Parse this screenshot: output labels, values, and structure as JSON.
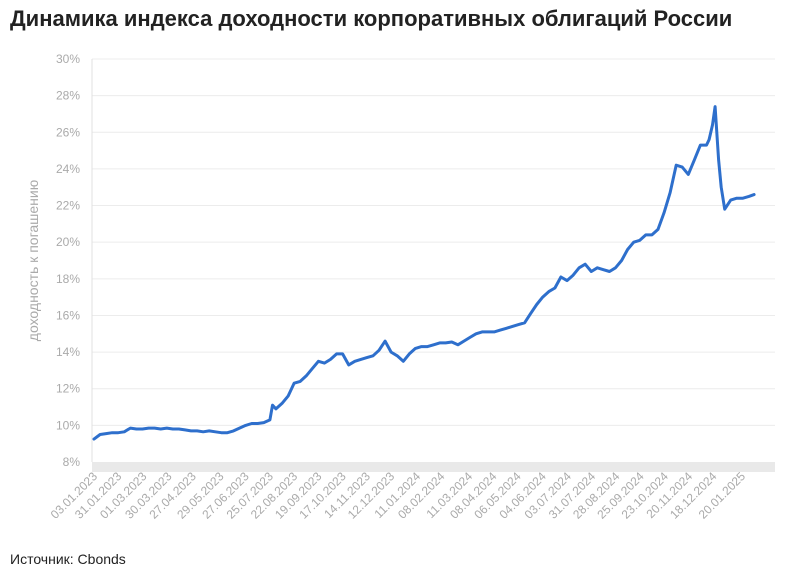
{
  "title": "Динамика индекса доходности корпоративных облигаций России",
  "source": "Источник: Cbonds",
  "chart_data": {
    "type": "line",
    "title": "Динамика индекса доходности корпоративных облигаций России",
    "ylabel": "доходность к погашению",
    "xlabel": "",
    "ylim": [
      8,
      30
    ],
    "y_ticks": [
      "8%",
      "10%",
      "12%",
      "14%",
      "16%",
      "18%",
      "20%",
      "22%",
      "24%",
      "26%",
      "28%",
      "30%"
    ],
    "x_ticks": [
      "03.01.2023",
      "31.01.2023",
      "01.03.2023",
      "30.03.2023",
      "27.04.2023",
      "29.05.2023",
      "27.06.2023",
      "25.07.2023",
      "22.08.2023",
      "19.09.2023",
      "17.10.2023",
      "14.11.2023",
      "12.12.2023",
      "11.01.2024",
      "08.02.2024",
      "11.03.2024",
      "08.04.2024",
      "06.05.2024",
      "04.06.2024",
      "03.07.2024",
      "31.07.2024",
      "28.08.2024",
      "25.09.2024",
      "23.10.2024",
      "20.11.2024",
      "18.12.2024",
      "20.01.2025"
    ],
    "color": "#2e6fcc",
    "grid": "horizontal",
    "series": [
      {
        "x": [
          "2023-01-03",
          "2023-01-10",
          "2023-01-17",
          "2023-01-24",
          "2023-01-31",
          "2023-02-07",
          "2023-02-14",
          "2023-02-21",
          "2023-02-28",
          "2023-03-07",
          "2023-03-14",
          "2023-03-21",
          "2023-03-28",
          "2023-04-04",
          "2023-04-11",
          "2023-04-18",
          "2023-04-25",
          "2023-05-02",
          "2023-05-09",
          "2023-05-16",
          "2023-05-23",
          "2023-05-30",
          "2023-06-06",
          "2023-06-13",
          "2023-06-20",
          "2023-06-27",
          "2023-07-04",
          "2023-07-11",
          "2023-07-18",
          "2023-07-25",
          "2023-07-28",
          "2023-08-01",
          "2023-08-08",
          "2023-08-15",
          "2023-08-22",
          "2023-08-29",
          "2023-09-05",
          "2023-09-12",
          "2023-09-19",
          "2023-09-26",
          "2023-10-03",
          "2023-10-10",
          "2023-10-17",
          "2023-10-24",
          "2023-10-31",
          "2023-11-07",
          "2023-11-14",
          "2023-11-21",
          "2023-11-28",
          "2023-12-05",
          "2023-12-12",
          "2023-12-19",
          "2023-12-26",
          "2024-01-02",
          "2024-01-09",
          "2024-01-16",
          "2024-01-23",
          "2024-01-30",
          "2024-02-06",
          "2024-02-13",
          "2024-02-20",
          "2024-02-27",
          "2024-03-05",
          "2024-03-12",
          "2024-03-19",
          "2024-03-26",
          "2024-04-02",
          "2024-04-09",
          "2024-04-16",
          "2024-04-23",
          "2024-04-30",
          "2024-05-07",
          "2024-05-14",
          "2024-05-21",
          "2024-05-28",
          "2024-06-04",
          "2024-06-11",
          "2024-06-18",
          "2024-06-25",
          "2024-07-02",
          "2024-07-09",
          "2024-07-16",
          "2024-07-23",
          "2024-07-30",
          "2024-08-06",
          "2024-08-13",
          "2024-08-20",
          "2024-08-27",
          "2024-09-03",
          "2024-09-10",
          "2024-09-17",
          "2024-09-24",
          "2024-10-01",
          "2024-10-08",
          "2024-10-15",
          "2024-10-22",
          "2024-10-29",
          "2024-11-05",
          "2024-11-12",
          "2024-11-19",
          "2024-11-26",
          "2024-12-03",
          "2024-12-10",
          "2024-12-13",
          "2024-12-17",
          "2024-12-20",
          "2024-12-24",
          "2024-12-27",
          "2024-12-31",
          "2025-01-07",
          "2025-01-14",
          "2025-01-21",
          "2025-01-28",
          "2025-02-03"
        ],
        "y": [
          9.25,
          9.5,
          9.55,
          9.6,
          9.6,
          9.65,
          9.85,
          9.8,
          9.8,
          9.85,
          9.85,
          9.8,
          9.85,
          9.8,
          9.8,
          9.75,
          9.7,
          9.7,
          9.65,
          9.7,
          9.65,
          9.6,
          9.6,
          9.7,
          9.85,
          10.0,
          10.1,
          10.1,
          10.15,
          10.3,
          11.1,
          10.9,
          11.2,
          11.6,
          12.3,
          12.4,
          12.7,
          13.1,
          13.5,
          13.4,
          13.6,
          13.9,
          13.9,
          13.3,
          13.5,
          13.6,
          13.7,
          13.8,
          14.1,
          14.6,
          14.0,
          13.8,
          13.5,
          13.9,
          14.2,
          14.3,
          14.3,
          14.4,
          14.5,
          14.5,
          14.55,
          14.4,
          14.6,
          14.8,
          15.0,
          15.1,
          15.1,
          15.1,
          15.2,
          15.3,
          15.4,
          15.5,
          15.6,
          16.1,
          16.6,
          17.0,
          17.3,
          17.5,
          18.1,
          17.9,
          18.2,
          18.6,
          18.8,
          18.4,
          18.6,
          18.5,
          18.4,
          18.6,
          19.0,
          19.6,
          20.0,
          20.1,
          20.4,
          20.4,
          20.7,
          21.6,
          22.7,
          24.2,
          24.1,
          23.7,
          24.5,
          25.3,
          25.3,
          25.6,
          26.4,
          27.4,
          24.5,
          23.0,
          21.8,
          22.3,
          22.4,
          22.4,
          22.5,
          22.6
        ]
      }
    ]
  }
}
